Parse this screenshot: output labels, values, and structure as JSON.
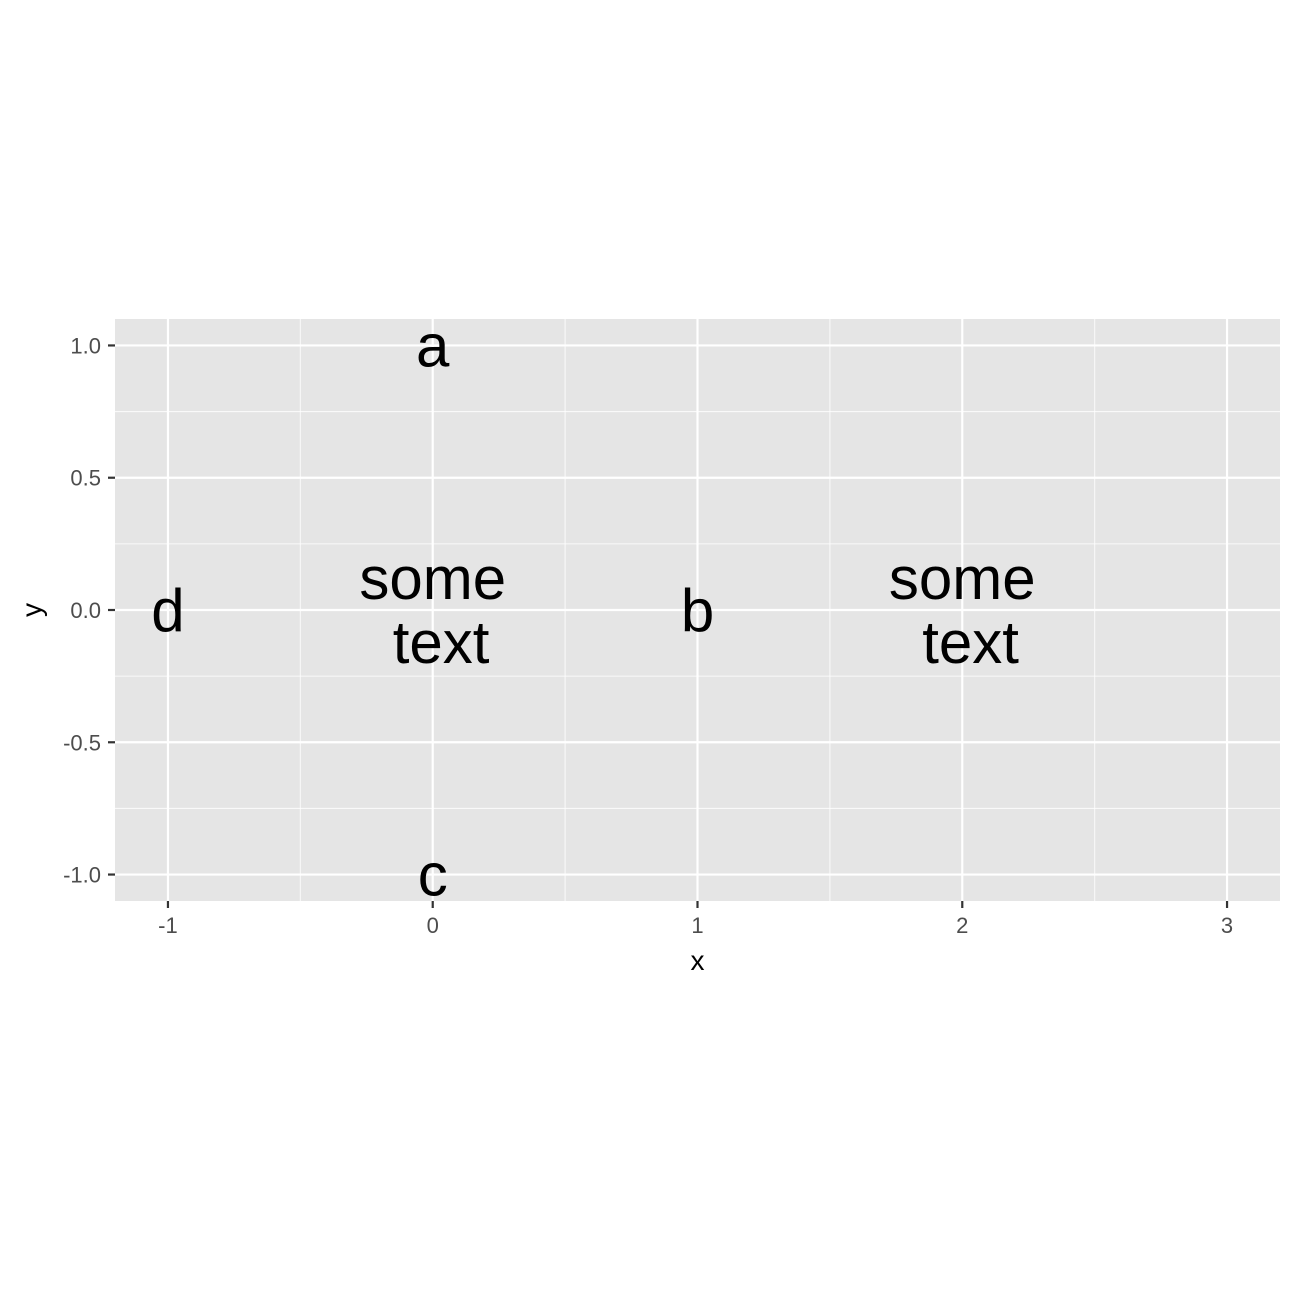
{
  "chart_data": {
    "type": "scatter",
    "title": "",
    "xlabel": "x",
    "ylabel": "y",
    "xlim": [
      -1.2,
      3.2
    ],
    "ylim": [
      -1.1,
      1.1
    ],
    "x_ticks": [
      -1,
      0,
      1,
      2,
      3
    ],
    "x_tick_labels": [
      "-1",
      "0",
      "1",
      "2",
      "3"
    ],
    "y_ticks": [
      1.0,
      0.5,
      0.0,
      -0.5,
      -1.0
    ],
    "y_tick_labels": [
      "1.0",
      "0.5",
      "0.0",
      "-0.5",
      "-1.0"
    ],
    "grid": true,
    "panel_background": "#e5e5e5",
    "grid_color": "#ffffff",
    "points": [
      {
        "x": 0,
        "y": 1,
        "label": "a"
      },
      {
        "x": 1,
        "y": 0,
        "label": "b"
      },
      {
        "x": 0,
        "y": -1,
        "label": "c"
      },
      {
        "x": -1,
        "y": 0,
        "label": "d"
      },
      {
        "x": 0,
        "y": 0,
        "label": [
          "some",
          " text"
        ]
      },
      {
        "x": 2,
        "y": 0,
        "label": [
          "some",
          " text"
        ]
      }
    ]
  }
}
